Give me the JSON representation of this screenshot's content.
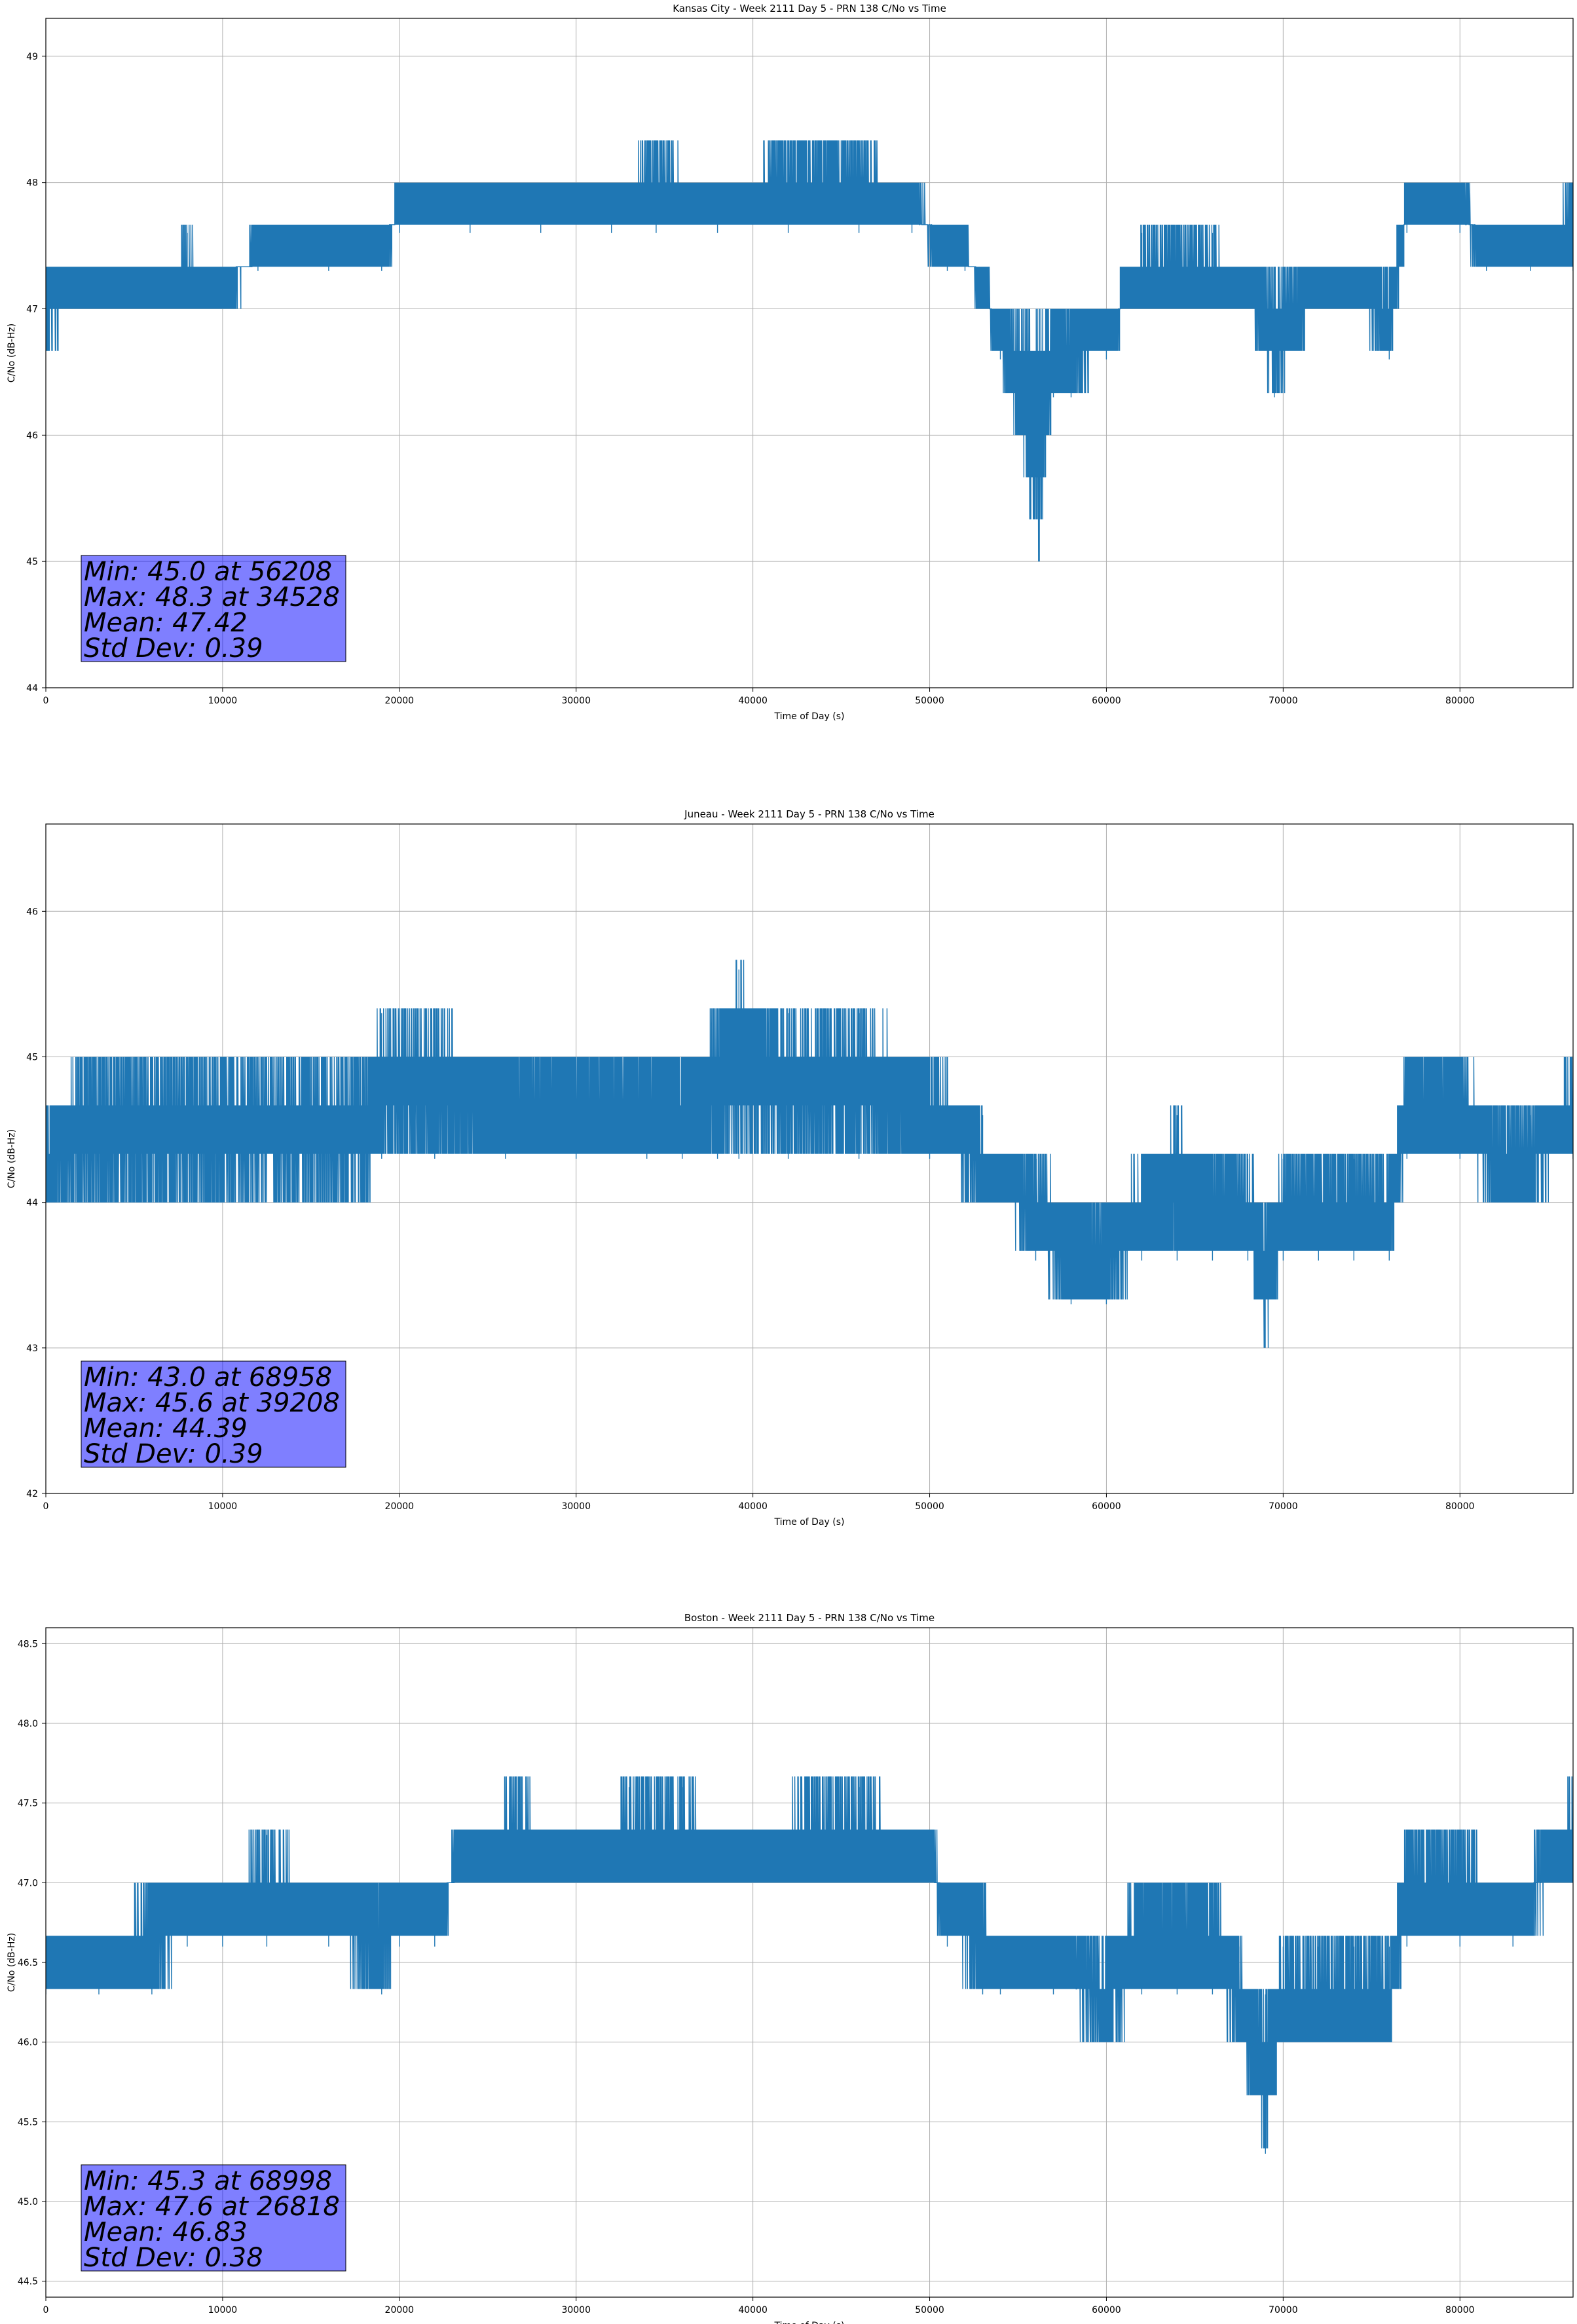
{
  "chart_data": [
    {
      "type": "line",
      "title": "Kansas City - Week 2111 Day 5 - PRN 138 C/No vs Time",
      "xlabel": "Time of Day (s)",
      "ylabel": "C/No (dB-Hz)",
      "xlim": [
        0,
        86400
      ],
      "ylim": [
        44.0,
        49.3
      ],
      "xticks": [
        0,
        10000,
        20000,
        30000,
        40000,
        50000,
        60000,
        70000,
        80000
      ],
      "xtick_labels": [
        "0",
        "10000",
        "20000",
        "30000",
        "40000",
        "50000",
        "60000",
        "70000",
        "80000"
      ],
      "yticks": [
        44,
        45,
        46,
        47,
        48,
        49
      ],
      "ytick_labels": [
        "44",
        "45",
        "46",
        "47",
        "48",
        "49"
      ],
      "grid": true,
      "color": "#1f77b4",
      "stats": [
        "Min: 45.0 at 56208",
        "Max: 48.3 at 34528",
        "Mean: 47.42",
        "Std Dev: 0.39"
      ],
      "x": [
        0,
        2000,
        6000,
        8000,
        10000,
        12000,
        16000,
        19000,
        20000,
        24000,
        28000,
        32000,
        34528,
        38000,
        42000,
        46000,
        49000,
        51000,
        52000,
        53000,
        54000,
        56208,
        57000,
        58000,
        60000,
        62000,
        64000,
        66000,
        68000,
        69500,
        72000,
        74000,
        76000,
        77000,
        80000,
        81500,
        84000,
        86400
      ],
      "low": [
        46.7,
        47.0,
        47.0,
        47.0,
        47.0,
        47.3,
        47.3,
        47.3,
        47.6,
        47.6,
        47.6,
        47.6,
        47.6,
        47.6,
        47.6,
        47.6,
        47.6,
        47.3,
        47.3,
        47.0,
        46.6,
        45.0,
        46.3,
        46.3,
        46.6,
        47.0,
        47.0,
        47.0,
        47.0,
        46.3,
        47.0,
        47.0,
        46.6,
        47.6,
        47.6,
        47.3,
        47.3,
        47.3
      ],
      "high": [
        47.3,
        47.3,
        47.3,
        47.6,
        47.3,
        47.6,
        47.6,
        47.6,
        48.0,
        48.0,
        48.0,
        48.0,
        48.3,
        48.0,
        48.3,
        48.3,
        48.0,
        47.6,
        47.6,
        47.3,
        47.0,
        47.0,
        47.0,
        47.0,
        47.0,
        47.6,
        47.6,
        47.6,
        47.3,
        47.3,
        47.3,
        47.3,
        47.3,
        48.0,
        48.0,
        47.6,
        47.6,
        48.0
      ]
    },
    {
      "type": "line",
      "title": "Juneau - Week 2111 Day 5 - PRN 138 C/No vs Time",
      "xlabel": "Time of Day (s)",
      "ylabel": "C/No (dB-Hz)",
      "xlim": [
        0,
        86400
      ],
      "ylim": [
        42.0,
        46.6
      ],
      "xticks": [
        0,
        10000,
        20000,
        30000,
        40000,
        50000,
        60000,
        70000,
        80000
      ],
      "xtick_labels": [
        "0",
        "10000",
        "20000",
        "30000",
        "40000",
        "50000",
        "60000",
        "70000",
        "80000"
      ],
      "yticks": [
        42,
        43,
        44,
        45,
        46
      ],
      "ytick_labels": [
        "42",
        "43",
        "44",
        "45",
        "46"
      ],
      "grid": true,
      "color": "#1f77b4",
      "stats": [
        "Min: 43.0 at 68958",
        "Max: 45.6 at 39208",
        "Mean: 44.39",
        "Std Dev: 0.39"
      ],
      "x": [
        0,
        2000,
        6000,
        8000,
        10000,
        14000,
        18000,
        19000,
        22000,
        26000,
        30000,
        34000,
        36000,
        38000,
        39208,
        42000,
        46000,
        50000,
        53000,
        54000,
        56000,
        58000,
        60000,
        62000,
        64000,
        66000,
        68000,
        68958,
        70000,
        72000,
        74000,
        76000,
        77000,
        80000,
        82000,
        84000,
        86400
      ],
      "low": [
        44.0,
        44.0,
        44.0,
        44.0,
        44.0,
        44.0,
        44.0,
        44.3,
        44.3,
        44.3,
        44.3,
        44.3,
        44.3,
        44.3,
        44.3,
        44.3,
        44.3,
        44.3,
        44.0,
        44.0,
        43.6,
        43.3,
        43.3,
        43.6,
        43.6,
        43.6,
        43.6,
        43.0,
        43.6,
        43.6,
        43.6,
        43.6,
        44.3,
        44.3,
        44.0,
        44.0,
        44.3
      ],
      "high": [
        44.6,
        45.0,
        45.0,
        45.0,
        45.0,
        45.0,
        45.0,
        45.3,
        45.3,
        45.0,
        45.0,
        45.0,
        45.0,
        45.3,
        45.6,
        45.3,
        45.3,
        45.0,
        44.6,
        44.3,
        44.3,
        44.0,
        44.0,
        44.3,
        44.6,
        44.3,
        44.3,
        44.0,
        44.3,
        44.3,
        44.3,
        44.3,
        45.0,
        45.0,
        44.6,
        44.6,
        45.0
      ]
    },
    {
      "type": "line",
      "title": "Boston - Week 2111 Day 5 - PRN 138 C/No vs Time",
      "xlabel": "Time of Day (s)",
      "ylabel": "C/No (dB-Hz)",
      "xlim": [
        0,
        86400
      ],
      "ylim": [
        44.4,
        48.6
      ],
      "xticks": [
        0,
        10000,
        20000,
        30000,
        40000,
        50000,
        60000,
        70000,
        80000
      ],
      "xtick_labels": [
        "0",
        "10000",
        "20000",
        "30000",
        "40000",
        "50000",
        "60000",
        "70000",
        "80000"
      ],
      "yticks": [
        44.5,
        45.0,
        45.5,
        46.0,
        46.5,
        47.0,
        47.5,
        48.0,
        48.5
      ],
      "ytick_labels": [
        "44.5",
        "45.0",
        "45.5",
        "46.0",
        "46.5",
        "47.0",
        "47.5",
        "48.0",
        "48.5"
      ],
      "grid": true,
      "color": "#1f77b4",
      "stats": [
        "Min: 45.3 at 68998",
        "Max: 47.6 at 26818",
        "Mean: 46.83",
        "Std Dev: 0.38"
      ],
      "x": [
        0,
        3000,
        6000,
        8000,
        10000,
        12500,
        16000,
        19000,
        20000,
        22000,
        23500,
        26818,
        30000,
        33000,
        36000,
        40000,
        43000,
        46000,
        50000,
        51000,
        53000,
        54000,
        57000,
        60000,
        62000,
        64000,
        66000,
        67500,
        68998,
        70000,
        72000,
        74000,
        76000,
        77000,
        80000,
        83000,
        86400
      ],
      "low": [
        46.3,
        46.3,
        46.3,
        46.6,
        46.6,
        46.6,
        46.6,
        46.3,
        46.6,
        46.6,
        47.0,
        47.0,
        47.0,
        47.0,
        47.0,
        47.0,
        47.0,
        47.0,
        47.0,
        46.6,
        46.3,
        46.3,
        46.3,
        46.0,
        46.3,
        46.3,
        46.3,
        46.0,
        45.3,
        46.0,
        46.0,
        46.0,
        46.0,
        46.6,
        46.6,
        46.6,
        47.0
      ],
      "high": [
        46.6,
        46.6,
        47.0,
        47.0,
        47.0,
        47.3,
        47.0,
        47.0,
        47.0,
        47.0,
        47.3,
        47.6,
        47.3,
        47.6,
        47.6,
        47.3,
        47.6,
        47.6,
        47.3,
        47.0,
        47.0,
        46.6,
        46.6,
        46.6,
        47.0,
        47.0,
        47.0,
        46.6,
        46.3,
        46.6,
        46.6,
        46.6,
        46.6,
        47.3,
        47.3,
        47.0,
        47.6
      ]
    }
  ]
}
